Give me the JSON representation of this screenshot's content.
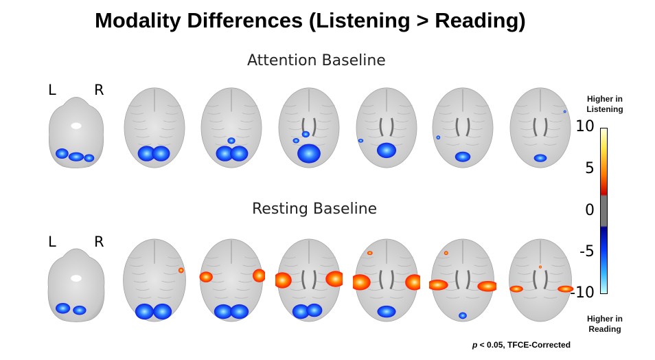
{
  "title": "Modality Differences (Listening > Reading)",
  "rows": [
    {
      "title": "Attention Baseline",
      "left_label": "L",
      "right_label": "R"
    },
    {
      "title": "Resting Baseline",
      "left_label": "L",
      "right_label": "R"
    }
  ],
  "colorbar": {
    "top_caption_line1": "Higher in",
    "top_caption_line2": "Listening",
    "bottom_caption_line1": "Higher in",
    "bottom_caption_line2": "Reading",
    "ticks": [
      "10",
      "5",
      "0",
      "-5",
      "-10"
    ],
    "range": [
      -10,
      10
    ]
  },
  "footnote": {
    "p_symbol": "p",
    "rest": " < 0.05, TFCE-Corrected"
  },
  "colors": {
    "positive": "#ff2a00",
    "negative": "#0a2cff",
    "brain_gray": "#cfcfcf"
  }
}
